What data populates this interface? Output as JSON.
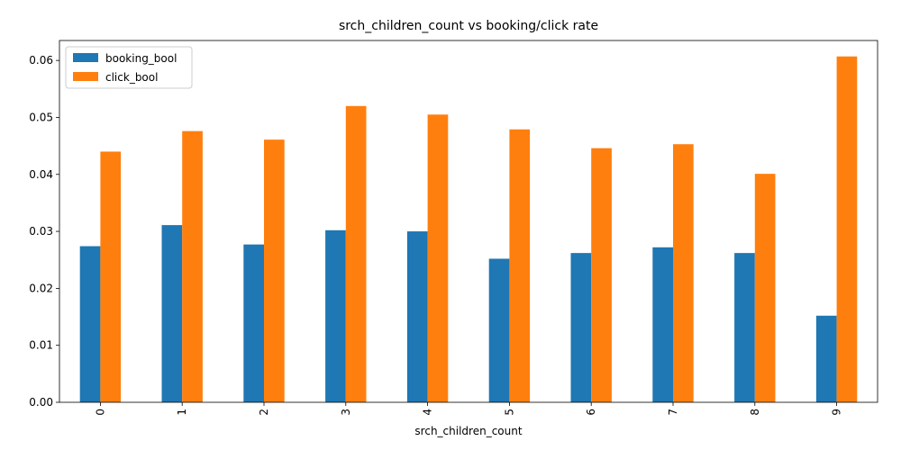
{
  "chart_data": {
    "type": "bar",
    "title": "srch_children_count vs booking/click rate",
    "xlabel": "srch_children_count",
    "ylabel": "",
    "categories": [
      "0",
      "1",
      "2",
      "3",
      "4",
      "5",
      "6",
      "7",
      "8",
      "9"
    ],
    "series": [
      {
        "name": "booking_bool",
        "color": "#1f77b4",
        "values": [
          0.0274,
          0.0311,
          0.0277,
          0.0302,
          0.03,
          0.0252,
          0.0262,
          0.0272,
          0.0262,
          0.0152
        ]
      },
      {
        "name": "click_bool",
        "color": "#ff7f0e",
        "values": [
          0.044,
          0.0476,
          0.0461,
          0.052,
          0.0505,
          0.0479,
          0.0446,
          0.0453,
          0.0401,
          0.0607
        ]
      }
    ],
    "ylim": [
      0,
      0.0635
    ],
    "yticks": [
      "0.00",
      "0.01",
      "0.02",
      "0.03",
      "0.04",
      "0.05",
      "0.06"
    ],
    "legend_position": "top-left",
    "grid": false,
    "xtick_rotation": "vertical"
  }
}
